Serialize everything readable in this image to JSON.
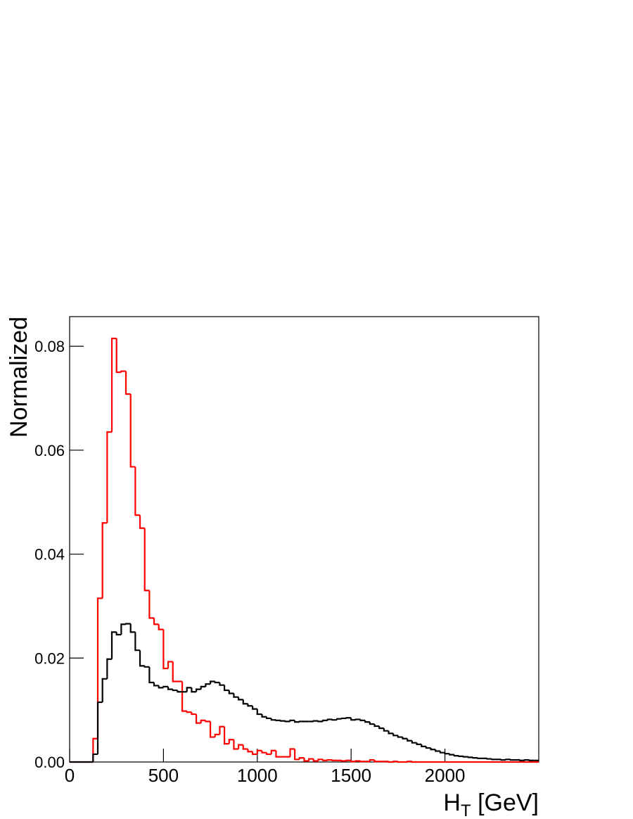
{
  "chart_data": {
    "type": "histogram",
    "bins": [
      0,
      25,
      50,
      75,
      100,
      125,
      150,
      175,
      200,
      225,
      250,
      275,
      300,
      325,
      350,
      375,
      400,
      425,
      450,
      475,
      500,
      525,
      550,
      575,
      600,
      625,
      650,
      675,
      700,
      725,
      750,
      775,
      800,
      825,
      850,
      875,
      900,
      925,
      950,
      975,
      1000,
      1025,
      1050,
      1075,
      1100,
      1125,
      1150,
      1175,
      1200,
      1225,
      1250,
      1275,
      1300,
      1325,
      1350,
      1375,
      1400,
      1425,
      1450,
      1475,
      1500,
      1525,
      1550,
      1575,
      1600,
      1625,
      1650,
      1675,
      1700,
      1725,
      1750,
      1775,
      1800,
      1825,
      1850,
      1875,
      1900,
      1925,
      1950,
      1975,
      2000,
      2025,
      2050,
      2075,
      2100,
      2125,
      2150,
      2175,
      2200,
      2225,
      2250,
      2275,
      2300,
      2325,
      2350,
      2375,
      2400,
      2425,
      2450,
      2475,
      2500
    ],
    "series": [
      {
        "color": "#ff0000",
        "values": [
          0,
          0,
          0,
          0,
          0,
          0.0045,
          0.0315,
          0.046,
          0.0635,
          0.0815,
          0.075,
          0.0752,
          0.0708,
          0.0568,
          0.0475,
          0.045,
          0.033,
          0.0277,
          0.0265,
          0.0255,
          0.018,
          0.0193,
          0.0155,
          0.0155,
          0.0098,
          0.0096,
          0.0092,
          0.0075,
          0.008,
          0.0078,
          0.0048,
          0.0053,
          0.0068,
          0.0035,
          0.0043,
          0.0025,
          0.0033,
          0.0025,
          0.002,
          0.0015,
          0.0022,
          0.0018,
          0.0015,
          0.0022,
          0.001,
          0.001,
          0.001,
          0.0025,
          0.0005,
          0.0008,
          0.0002,
          0.0006,
          0.0002,
          0.0005,
          0.0003,
          0.0004,
          0.0003,
          0.0003,
          0.0002,
          0.0003,
          0.0001,
          0.0002,
          0.0001,
          0.0001,
          0.0004,
          0.0001,
          0.0001,
          0.0001,
          0,
          0.0001,
          0,
          0,
          0.0001,
          0,
          0,
          0,
          0,
          0,
          0,
          0,
          0,
          0,
          0,
          0,
          0,
          0,
          0,
          0,
          0,
          0,
          0,
          0,
          0,
          0,
          0,
          0,
          0,
          0,
          0,
          0
        ]
      },
      {
        "color": "#000000",
        "values": [
          0,
          0,
          0,
          0,
          0,
          0.0015,
          0.0115,
          0.016,
          0.0198,
          0.025,
          0.0245,
          0.0265,
          0.0266,
          0.025,
          0.0215,
          0.0185,
          0.0183,
          0.0153,
          0.0147,
          0.0143,
          0.0145,
          0.014,
          0.0138,
          0.0135,
          0.0135,
          0.0143,
          0.0135,
          0.014,
          0.0145,
          0.015,
          0.0155,
          0.0153,
          0.0148,
          0.0138,
          0.0132,
          0.0125,
          0.012,
          0.0112,
          0.0108,
          0.0102,
          0.0092,
          0.0087,
          0.0084,
          0.0081,
          0.008,
          0.0079,
          0.0078,
          0.008,
          0.0077,
          0.0078,
          0.0078,
          0.0078,
          0.0079,
          0.0078,
          0.008,
          0.0082,
          0.0081,
          0.0083,
          0.0084,
          0.0085,
          0.0081,
          0.0082,
          0.008,
          0.0077,
          0.0073,
          0.0069,
          0.0065,
          0.006,
          0.0055,
          0.0051,
          0.0048,
          0.0045,
          0.0041,
          0.0037,
          0.0034,
          0.003,
          0.0027,
          0.0024,
          0.0021,
          0.0018,
          0.0016,
          0.0014,
          0.0012,
          0.0011,
          0.001,
          0.0009,
          0.0008,
          0.0007,
          0.0007,
          0.0006,
          0.0005,
          0.0005,
          0.0004,
          0.0005,
          0.0004,
          0.0004,
          0.0003,
          0.0004,
          0.0003,
          0.0003
        ]
      }
    ],
    "xlabel": [
      "H",
      "T",
      " [GeV]"
    ],
    "ylabel": "Normalized",
    "xlim": [
      0,
      2500
    ],
    "xticks": [
      0,
      500,
      1000,
      1500,
      2000
    ],
    "ylim": [
      0,
      0.0857
    ],
    "yticks": [
      {
        "value": 0,
        "label": "0.00"
      },
      0.02,
      0.04,
      0.06,
      0.08
    ]
  }
}
